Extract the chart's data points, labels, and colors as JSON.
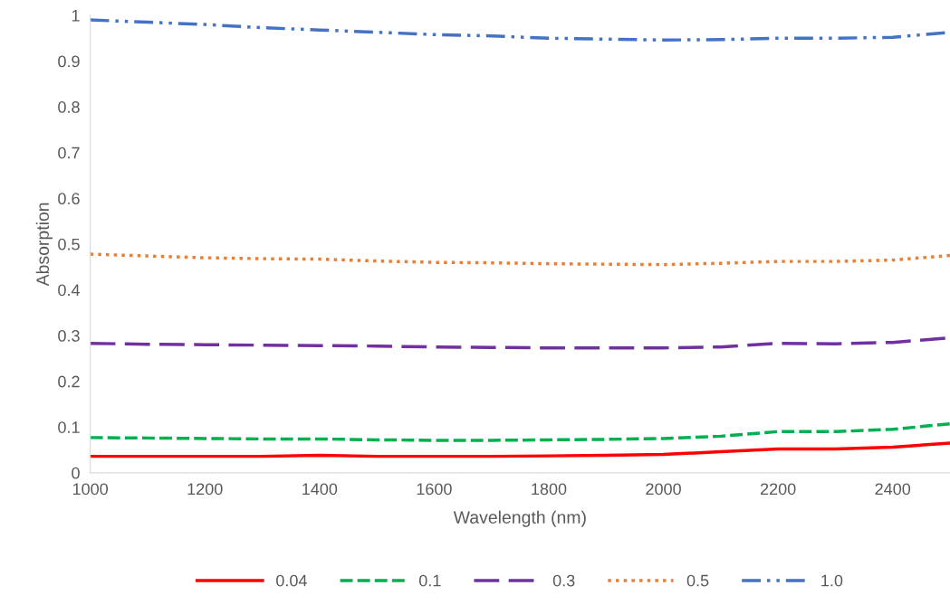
{
  "chart_data": {
    "type": "line",
    "xlabel": "Wavelength (nm)",
    "ylabel": "Absorption",
    "x": [
      1000,
      1100,
      1200,
      1300,
      1400,
      1500,
      1600,
      1700,
      1800,
      1900,
      2000,
      2100,
      2200,
      2300,
      2400,
      2500
    ],
    "series": [
      {
        "name": "0.04",
        "color": "#ff0000",
        "line_style": "solid",
        "values": [
          0.036,
          0.036,
          0.036,
          0.036,
          0.038,
          0.036,
          0.036,
          0.036,
          0.037,
          0.038,
          0.04,
          0.046,
          0.052,
          0.052,
          0.056,
          0.065
        ]
      },
      {
        "name": "0.1",
        "color": "#00b050",
        "line_style": "dashed",
        "values": [
          0.077,
          0.076,
          0.075,
          0.074,
          0.074,
          0.072,
          0.071,
          0.071,
          0.072,
          0.073,
          0.075,
          0.08,
          0.09,
          0.09,
          0.095,
          0.107
        ]
      },
      {
        "name": "0.3",
        "color": "#7030a0",
        "line_style": "longdash",
        "values": [
          0.283,
          0.281,
          0.28,
          0.279,
          0.278,
          0.277,
          0.275,
          0.274,
          0.273,
          0.273,
          0.273,
          0.275,
          0.283,
          0.282,
          0.285,
          0.295
        ]
      },
      {
        "name": "0.5",
        "color": "#ed7d31",
        "line_style": "dotted",
        "values": [
          0.478,
          0.474,
          0.47,
          0.468,
          0.467,
          0.463,
          0.46,
          0.459,
          0.457,
          0.456,
          0.455,
          0.458,
          0.462,
          0.462,
          0.465,
          0.475
        ]
      },
      {
        "name": "1.0",
        "color": "#4472c4",
        "line_style": "dashdotdot",
        "values": [
          0.99,
          0.985,
          0.98,
          0.973,
          0.968,
          0.963,
          0.958,
          0.955,
          0.95,
          0.948,
          0.946,
          0.947,
          0.95,
          0.95,
          0.952,
          0.963
        ]
      }
    ],
    "xlim": [
      1000,
      2500
    ],
    "xticks": [
      1000,
      1200,
      1400,
      1600,
      1800,
      2000,
      2200,
      2400
    ],
    "ylim": [
      0,
      1
    ],
    "yticks": [
      0,
      0.1,
      0.2,
      0.3,
      0.4,
      0.5,
      0.6,
      0.7,
      0.8,
      0.9,
      1
    ],
    "legend": "bottom"
  }
}
